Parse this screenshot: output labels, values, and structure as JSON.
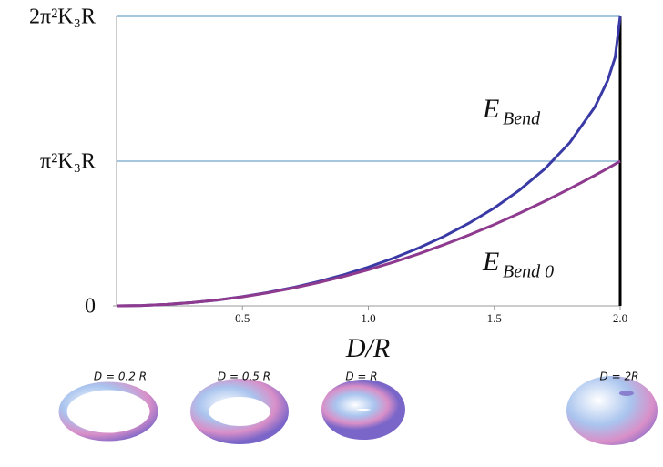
{
  "chart_data": {
    "type": "line",
    "x_label": "D/R",
    "x": [
      0,
      0.1,
      0.2,
      0.3,
      0.4,
      0.5,
      0.6,
      0.7,
      0.8,
      0.9,
      1.0,
      1.1,
      1.2,
      1.3,
      1.4,
      1.5,
      1.6,
      1.7,
      1.8,
      1.9,
      1.95,
      1.98,
      2.0
    ],
    "series": [
      {
        "name": "Bend",
        "color": "#3a3aa6",
        "values": [
          0,
          0.0025,
          0.01,
          0.0226,
          0.0404,
          0.0635,
          0.0921,
          0.1265,
          0.167,
          0.214,
          0.268,
          0.33,
          0.4,
          0.48,
          0.572,
          0.677,
          0.8,
          0.946,
          1.128,
          1.376,
          1.556,
          1.718,
          2
        ]
      },
      {
        "name": "Bend 0",
        "color": "#8e3a8e",
        "values": [
          0,
          0.0025,
          0.01,
          0.0225,
          0.04,
          0.0625,
          0.09,
          0.1225,
          0.16,
          0.2025,
          0.25,
          0.3025,
          0.36,
          0.4225,
          0.49,
          0.5625,
          0.64,
          0.7225,
          0.81,
          0.9025,
          0.9506,
          0.9801,
          1
        ]
      }
    ],
    "annotation_symbol": "E",
    "xlim": [
      0,
      2
    ],
    "ylim": [
      0,
      2
    ],
    "xticks": [
      0.5,
      {
        "value": 1,
        "label": "1.0"
      },
      1.5,
      {
        "value": 2,
        "label": "2.0"
      }
    ],
    "yticks": [
      0,
      {
        "value": 1,
        "label": "π²K₃R"
      },
      {
        "value": 2,
        "label": "2π²K₃R"
      }
    ],
    "grid": true,
    "grid_color": "#6fa3c8"
  },
  "panels": [
    {
      "label": "D = 0.2 R"
    },
    {
      "label": "D = 0.5 R"
    },
    {
      "label": "D = R"
    },
    {
      "label": "D = 2R"
    }
  ]
}
